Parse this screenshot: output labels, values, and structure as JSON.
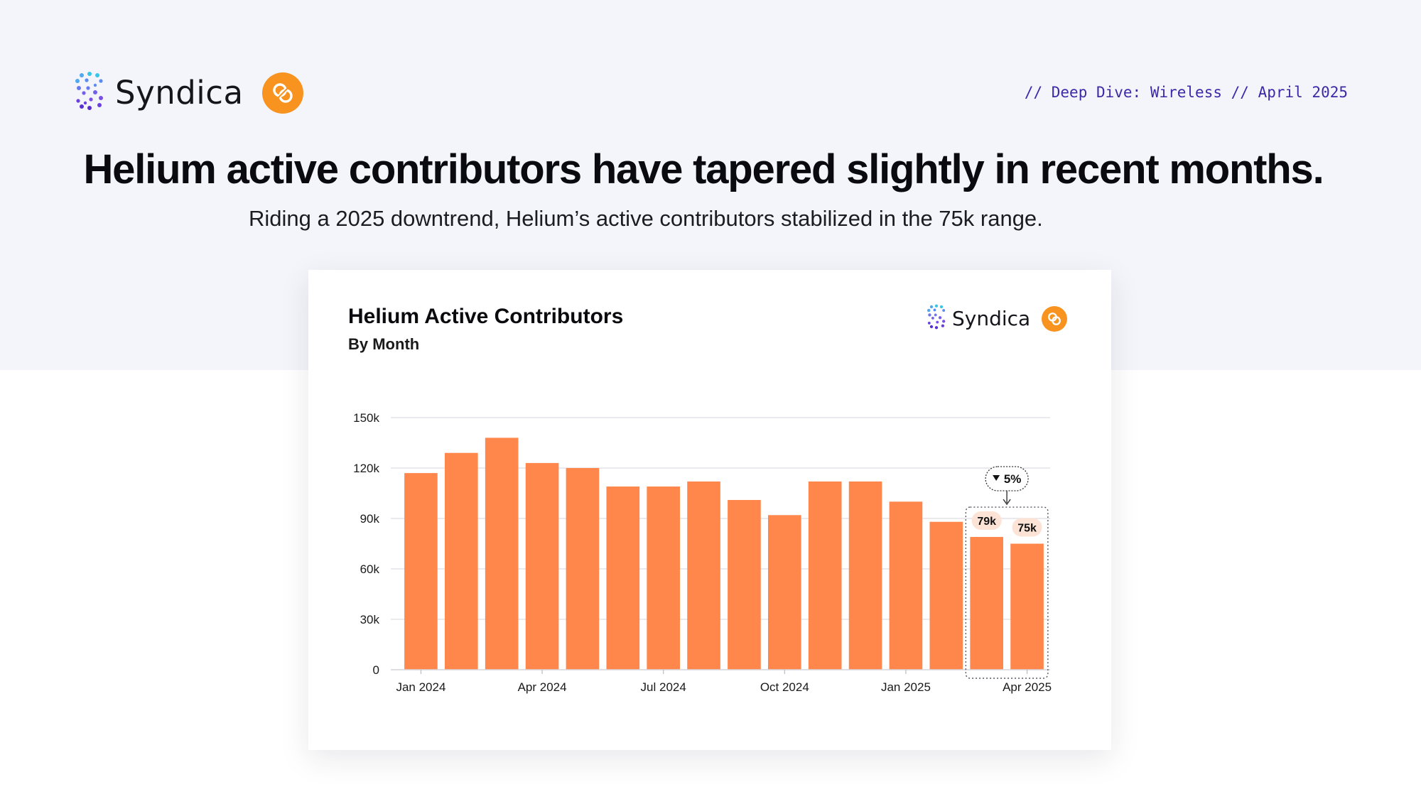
{
  "header": {
    "brand_name": "Syndica",
    "tagline": "// Deep Dive: Wireless // April 2025"
  },
  "headline": "Helium active contributors have tapered slightly in recent months.",
  "subheadline": "Riding a 2025 downtrend, Helium’s active contributors stabilized in the 75k range.",
  "card": {
    "brand_name": "Syndica"
  },
  "colors": {
    "bar": "#ff874c",
    "accent_orange": "#f7931e",
    "tagline": "#3a2aa8",
    "label_bg": "#fde3d6"
  },
  "icons": [
    "syndica-logo-icon",
    "helium-logo-icon"
  ],
  "chart_data": {
    "type": "bar",
    "title": "Helium Active Contributors",
    "subtitle": "By Month",
    "xlabel": "",
    "ylabel": "",
    "categories": [
      "Jan 2024",
      "Feb 2024",
      "Mar 2024",
      "Apr 2024",
      "May 2024",
      "Jun 2024",
      "Jul 2024",
      "Aug 2024",
      "Sep 2024",
      "Oct 2024",
      "Nov 2024",
      "Dec 2024",
      "Jan 2025",
      "Feb 2025",
      "Mar 2025",
      "Apr 2025"
    ],
    "values": [
      117000,
      129000,
      138000,
      123000,
      120000,
      109000,
      109000,
      112000,
      101000,
      92000,
      112000,
      112000,
      100000,
      88000,
      79000,
      75000
    ],
    "ylim": [
      0,
      150000
    ],
    "yticks": [
      0,
      30000,
      60000,
      90000,
      120000,
      150000
    ],
    "ytick_labels": [
      "0",
      "30k",
      "60k",
      "90k",
      "120k",
      "150k"
    ],
    "xtick_labels": [
      "Jan 2024",
      "Apr 2024",
      "Jul 2024",
      "Oct 2024",
      "Jan 2025",
      "Apr 2025"
    ],
    "grid": true,
    "legend": "none",
    "annotations": {
      "data_labels": [
        {
          "index": 14,
          "text": "79k"
        },
        {
          "index": 15,
          "text": "75k"
        }
      ],
      "change": {
        "text": "5%",
        "direction": "down",
        "highlight": [
          "Mar 2025",
          "Apr 2025"
        ]
      }
    }
  }
}
